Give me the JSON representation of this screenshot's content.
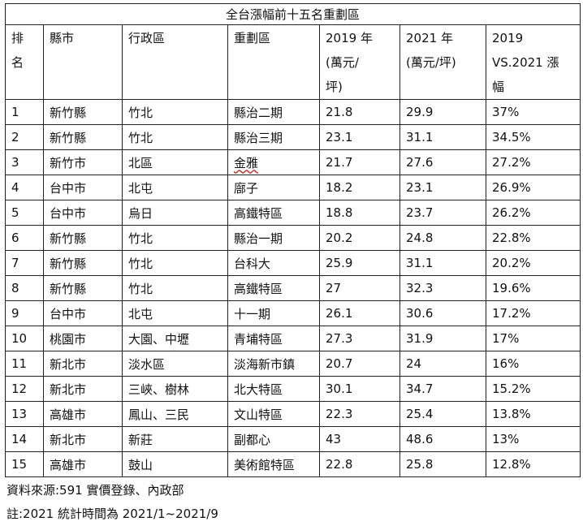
{
  "table": {
    "title": "全台漲幅前十五名重劃區",
    "headers": {
      "rank": [
        "排",
        "名"
      ],
      "county": "縣市",
      "district": "行政區",
      "zone": "重劃區",
      "y2019": [
        "2019 年",
        "(萬元/",
        "坪)"
      ],
      "y2021": [
        "2021 年",
        "(萬元/坪)"
      ],
      "change": [
        "2019",
        "VS.2021 漲",
        "幅"
      ]
    },
    "rows": [
      {
        "rank": "1",
        "county": "新竹縣",
        "district": "竹北",
        "zone": "縣治二期",
        "y2019": "21.8",
        "y2021": "29.9",
        "change": "37%"
      },
      {
        "rank": "2",
        "county": "新竹縣",
        "district": "竹北",
        "zone": "縣治三期",
        "y2019": "23.1",
        "y2021": "31.1",
        "change": "34.5%"
      },
      {
        "rank": "3",
        "county": "新竹市",
        "district": "北區",
        "zone": "金雅",
        "y2019": "21.7",
        "y2021": "27.6",
        "change": "27.2%"
      },
      {
        "rank": "4",
        "county": "台中市",
        "district": "北屯",
        "zone": "廍子",
        "y2019": "18.2",
        "y2021": "23.1",
        "change": "26.9%"
      },
      {
        "rank": "5",
        "county": "台中市",
        "district": "烏日",
        "zone": "高鐵特區",
        "y2019": "18.8",
        "y2021": "23.7",
        "change": "26.2%"
      },
      {
        "rank": "6",
        "county": "新竹縣",
        "district": "竹北",
        "zone": "縣治一期",
        "y2019": "20.2",
        "y2021": "24.8",
        "change": "22.8%"
      },
      {
        "rank": "7",
        "county": "新竹縣",
        "district": "竹北",
        "zone": "台科大",
        "y2019": "25.9",
        "y2021": "31.1",
        "change": "20.2%"
      },
      {
        "rank": "8",
        "county": "新竹縣",
        "district": "竹北",
        "zone": "高鐵特區",
        "y2019": "27",
        "y2021": "32.3",
        "change": "19.6%"
      },
      {
        "rank": "9",
        "county": "台中市",
        "district": "北屯",
        "zone": "十一期",
        "y2019": "26.1",
        "y2021": "30.6",
        "change": "17.2%"
      },
      {
        "rank": "10",
        "county": "桃園市",
        "district": "大園、中壢",
        "zone": "青埔特區",
        "y2019": "27.3",
        "y2021": "31.9",
        "change": "17%"
      },
      {
        "rank": "11",
        "county": "新北市",
        "district": "淡水區",
        "zone": "淡海新市鎮",
        "y2019": "20.7",
        "y2021": "24",
        "change": "16%"
      },
      {
        "rank": "12",
        "county": "新北市",
        "district": "三峽、樹林",
        "zone": "北大特區",
        "y2019": "30.1",
        "y2021": "34.7",
        "change": "15.2%"
      },
      {
        "rank": "13",
        "county": "高雄市",
        "district": "鳳山、三民",
        "zone": "文山特區",
        "y2019": "22.3",
        "y2021": "25.4",
        "change": "13.8%"
      },
      {
        "rank": "14",
        "county": "新北市",
        "district": "新莊",
        "zone": "副都心",
        "y2019": "43",
        "y2021": "48.6",
        "change": "13%"
      },
      {
        "rank": "15",
        "county": "高雄市",
        "district": "鼓山",
        "zone": "美術館特區",
        "y2019": "22.8",
        "y2021": "25.8",
        "change": "12.8%"
      }
    ]
  },
  "notes": {
    "source": "資料來源:591 實價登錄、內政部",
    "remark": "註:2021 統計時間為 2021/1~2021/9"
  }
}
